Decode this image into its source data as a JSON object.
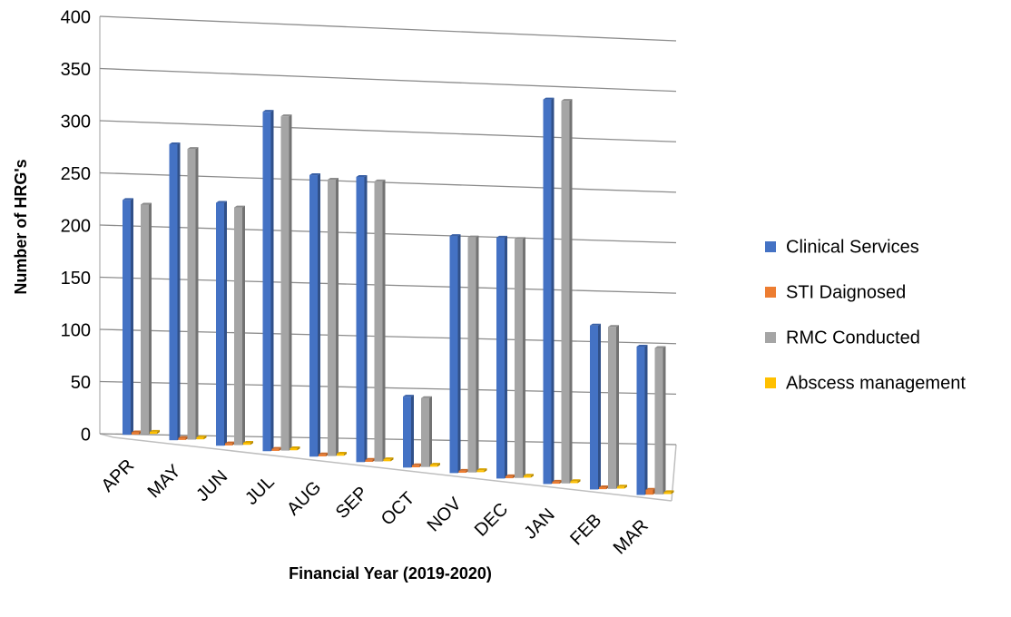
{
  "chart_data": {
    "type": "bar",
    "y_label": "Number of HRG's",
    "x_label": "Financial Year (2019-2020)",
    "categories": [
      "APR",
      "MAY",
      "JUN",
      "JUL",
      "AUG",
      "SEP",
      "OCT",
      "NOV",
      "DEC",
      "JAN",
      "FEB",
      "MAR"
    ],
    "series": [
      {
        "name": "Clinical Services",
        "color": "#4472c4",
        "values": [
          225,
          285,
          235,
          330,
          275,
          280,
          70,
          235,
          240,
          385,
          165,
          150
        ]
      },
      {
        "name": "STI Daignosed",
        "color": "#ed7d31",
        "values": [
          2,
          2,
          2,
          2,
          2,
          2,
          2,
          2,
          2,
          2,
          2,
          5
        ]
      },
      {
        "name": "RMC Conducted",
        "color": "#a5a5a5",
        "values": [
          220,
          280,
          230,
          325,
          270,
          275,
          68,
          233,
          238,
          383,
          163,
          148
        ]
      },
      {
        "name": "Abscess management",
        "color": "#ffc000",
        "values": [
          2,
          2,
          2,
          2,
          2,
          2,
          2,
          2,
          2,
          2,
          2,
          2
        ]
      }
    ],
    "ylim": [
      0,
      400
    ],
    "yticks": [
      0,
      50,
      100,
      150,
      200,
      250,
      300,
      350,
      400
    ],
    "grid": true,
    "legend": "right"
  }
}
